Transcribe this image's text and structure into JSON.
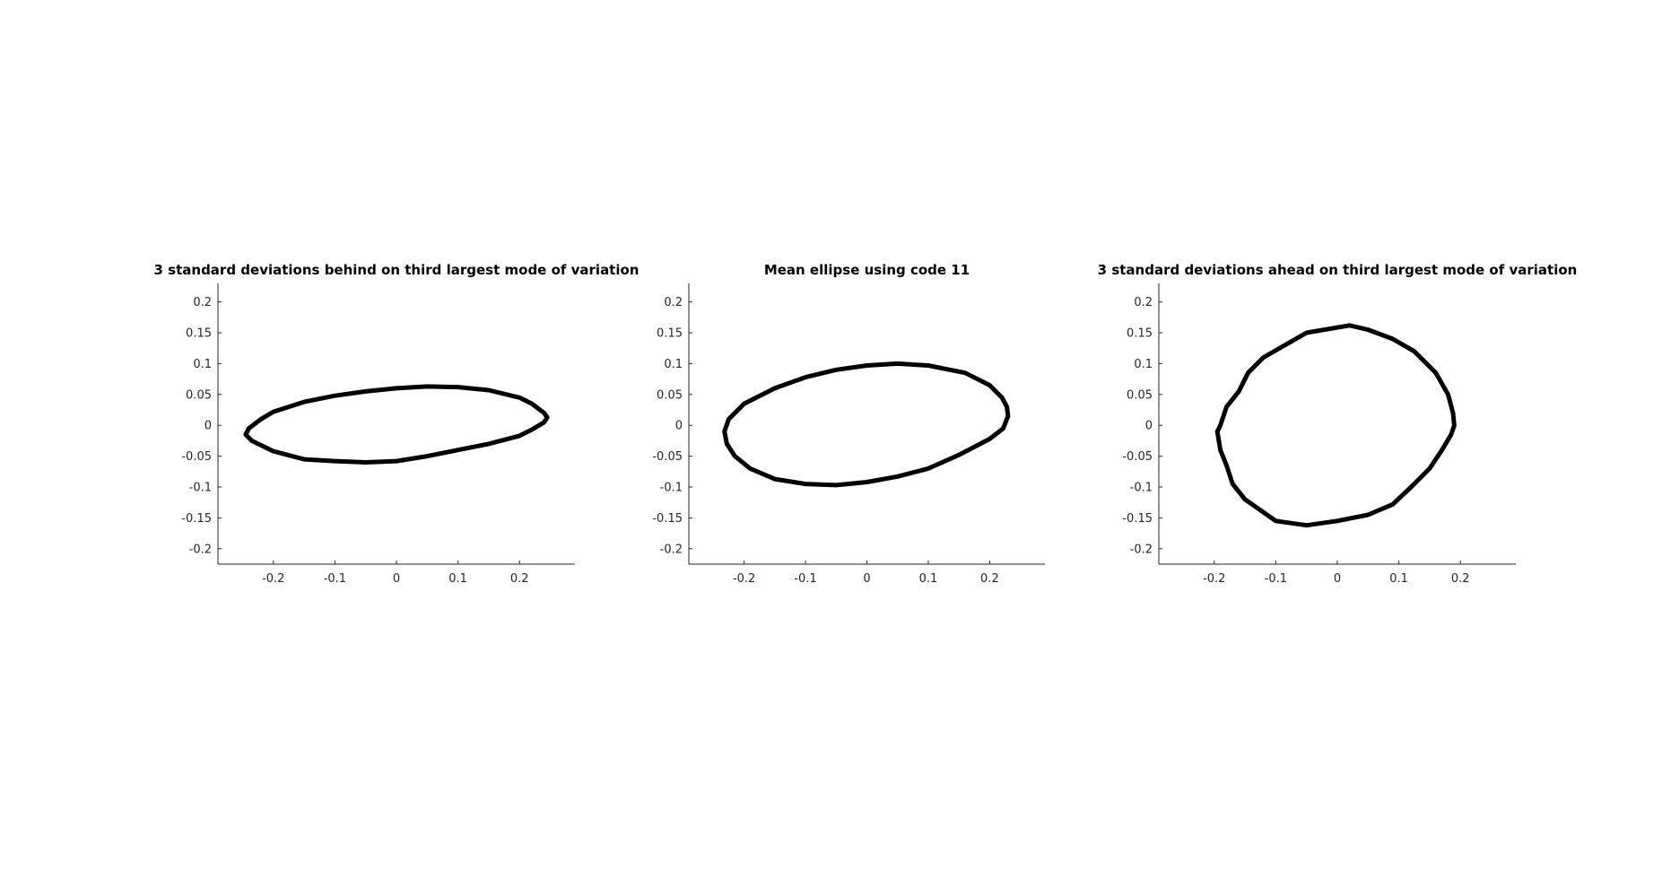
{
  "chart_data": [
    {
      "type": "line",
      "title": "3 standard deviations behind on third largest mode of variation",
      "xlabel": "",
      "ylabel": "",
      "xlim": [
        -0.29,
        0.29
      ],
      "ylim": [
        -0.225,
        0.23
      ],
      "grid": false,
      "xticks": [
        -0.2,
        -0.1,
        0,
        0.1,
        0.2
      ],
      "xtick_labels": [
        "-0.2",
        "-0.1",
        "0",
        "0.1",
        "0.2"
      ],
      "yticks": [
        0.2,
        0.15,
        0.1,
        0.05,
        0,
        -0.05,
        -0.1,
        -0.15,
        -0.2
      ],
      "ytick_labels": [
        "0.2",
        "0.15",
        "0.1",
        "0.05",
        "0",
        "-0.05",
        "-0.1",
        "-0.15",
        "-0.2"
      ],
      "series": [
        {
          "color": "#000000",
          "x": [
            0.245,
            0.24,
            0.22,
            0.2,
            0.15,
            0.1,
            0.05,
            0.0,
            -0.05,
            -0.1,
            -0.15,
            -0.2,
            -0.22,
            -0.24,
            -0.245,
            -0.235,
            -0.2,
            -0.15,
            -0.1,
            -0.05,
            0.0,
            0.05,
            0.1,
            0.15,
            0.2,
            0.22,
            0.24,
            0.245
          ],
          "y": [
            0.013,
            0.02,
            0.035,
            0.045,
            0.057,
            0.062,
            0.063,
            0.06,
            0.055,
            0.048,
            0.038,
            0.022,
            0.01,
            -0.005,
            -0.015,
            -0.025,
            -0.042,
            -0.055,
            -0.058,
            -0.06,
            -0.058,
            -0.05,
            -0.04,
            -0.03,
            -0.017,
            -0.007,
            0.005,
            0.013
          ]
        }
      ]
    },
    {
      "type": "line",
      "title": "Mean ellipse using code 11",
      "xlabel": "",
      "ylabel": "",
      "xlim": [
        -0.29,
        0.29
      ],
      "ylim": [
        -0.225,
        0.23
      ],
      "grid": false,
      "xticks": [
        -0.2,
        -0.1,
        0,
        0.1,
        0.2
      ],
      "xtick_labels": [
        "-0.2",
        "-0.1",
        "0",
        "0.1",
        "0.2"
      ],
      "yticks": [
        0.2,
        0.15,
        0.1,
        0.05,
        0,
        -0.05,
        -0.1,
        -0.15,
        -0.2
      ],
      "ytick_labels": [
        "0.2",
        "0.15",
        "0.1",
        "0.05",
        "0",
        "-0.05",
        "-0.1",
        "-0.15",
        "-0.2"
      ],
      "series": [
        {
          "color": "#000000",
          "x": [
            0.23,
            0.228,
            0.22,
            0.2,
            0.16,
            0.1,
            0.05,
            0.0,
            -0.05,
            -0.1,
            -0.15,
            -0.2,
            -0.225,
            -0.232,
            -0.228,
            -0.215,
            -0.19,
            -0.15,
            -0.1,
            -0.05,
            0.0,
            0.05,
            0.1,
            0.15,
            0.2,
            0.222,
            0.23
          ],
          "y": [
            0.015,
            0.03,
            0.045,
            0.065,
            0.085,
            0.097,
            0.1,
            0.097,
            0.09,
            0.078,
            0.06,
            0.035,
            0.01,
            -0.01,
            -0.03,
            -0.05,
            -0.07,
            -0.087,
            -0.095,
            -0.097,
            -0.092,
            -0.083,
            -0.07,
            -0.048,
            -0.022,
            -0.005,
            0.015
          ]
        }
      ]
    },
    {
      "type": "line",
      "title": "3 standard deviations ahead on third largest mode of variation",
      "xlabel": "",
      "ylabel": "",
      "xlim": [
        -0.29,
        0.29
      ],
      "ylim": [
        -0.225,
        0.23
      ],
      "grid": false,
      "xticks": [
        -0.2,
        -0.1,
        0,
        0.1,
        0.2
      ],
      "xtick_labels": [
        "-0.2",
        "-0.1",
        "0",
        "0.1",
        "0.2"
      ],
      "yticks": [
        0.2,
        0.15,
        0.1,
        0.05,
        0,
        -0.05,
        -0.1,
        -0.15,
        -0.2
      ],
      "ytick_labels": [
        "0.2",
        "0.15",
        "0.1",
        "0.05",
        "0",
        "-0.05",
        "-0.1",
        "-0.15",
        "-0.2"
      ],
      "series": [
        {
          "color": "#000000",
          "x": [
            0.19,
            0.188,
            0.18,
            0.16,
            0.125,
            0.09,
            0.05,
            0.02,
            -0.05,
            -0.12,
            -0.145,
            -0.16,
            -0.18,
            -0.19,
            -0.195,
            -0.19,
            -0.18,
            -0.17,
            -0.15,
            -0.1,
            -0.05,
            0.0,
            0.05,
            0.09,
            0.12,
            0.15,
            0.17,
            0.185,
            0.19
          ],
          "y": [
            0.0,
            0.02,
            0.05,
            0.085,
            0.12,
            0.14,
            0.155,
            0.162,
            0.15,
            0.11,
            0.085,
            0.055,
            0.03,
            0.0,
            -0.01,
            -0.04,
            -0.065,
            -0.095,
            -0.12,
            -0.155,
            -0.162,
            -0.155,
            -0.145,
            -0.128,
            -0.1,
            -0.07,
            -0.04,
            -0.015,
            0.0
          ]
        }
      ]
    }
  ]
}
